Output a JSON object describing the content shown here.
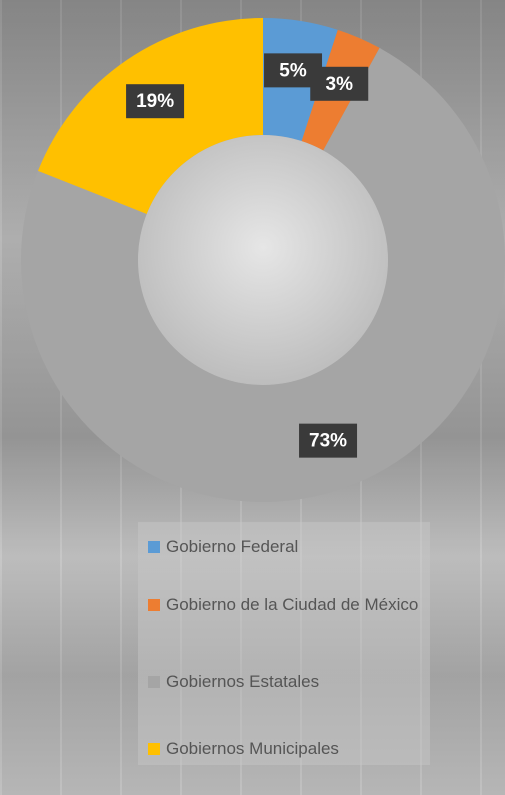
{
  "chart_data": {
    "type": "donut",
    "categories": [
      "Gobierno Federal",
      "Gobierno de la Ciudad de México",
      "Gobiernos Estatales",
      "Gobiernos Municipales"
    ],
    "values": [
      5,
      3,
      73,
      19
    ],
    "value_labels": [
      "5%",
      "3%",
      "73%",
      "19%"
    ],
    "colors": [
      "#5b9bd5",
      "#ed7d31",
      "#a5a5a5",
      "#ffc000"
    ],
    "legend": "bottom"
  }
}
